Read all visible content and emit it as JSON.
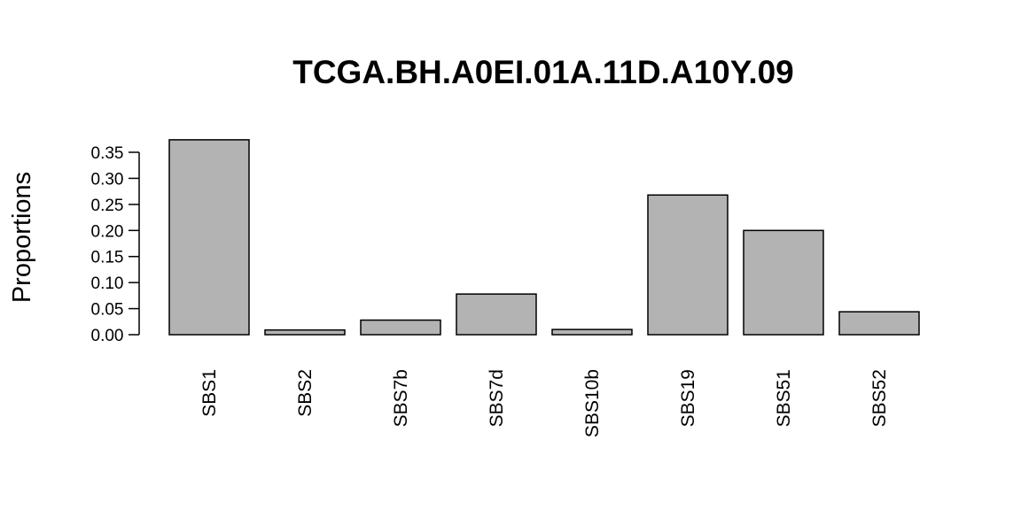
{
  "chart_data": {
    "type": "bar",
    "title": "TCGA.BH.A0EI.01A.11D.A10Y.09",
    "xlabel": "",
    "ylabel": "Proportions",
    "categories": [
      "SBS1",
      "SBS2",
      "SBS7b",
      "SBS7d",
      "SBS10b",
      "SBS19",
      "SBS51",
      "SBS52"
    ],
    "values": [
      0.374,
      0.009,
      0.028,
      0.078,
      0.01,
      0.268,
      0.2,
      0.044
    ],
    "yticks": [
      0.0,
      0.05,
      0.1,
      0.15,
      0.2,
      0.25,
      0.3,
      0.35
    ],
    "ytick_labels": [
      "0.00",
      "0.05",
      "0.10",
      "0.15",
      "0.20",
      "0.25",
      "0.30",
      "0.35"
    ],
    "ylim": [
      0,
      0.35
    ],
    "grid": false,
    "legend": "none",
    "colors": {
      "bar_fill": "#b3b3b3",
      "bar_stroke": "#000000",
      "axis": "#000000"
    }
  }
}
